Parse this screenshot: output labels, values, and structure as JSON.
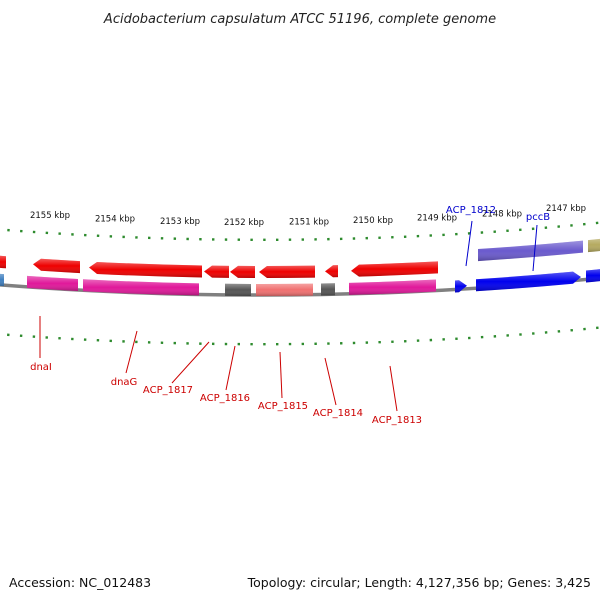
{
  "title": "Acidobacterium capsulatum ATCC 51196, complete genome",
  "footer": {
    "accession": "Accession: NC_012483",
    "summary": "Topology: circular; Length: 4,127,356 bp; Genes: 3,425"
  },
  "colors": {
    "backbone": "#808080",
    "tick": "#2e8b2e",
    "label_red": "#cc0000",
    "label_blue": "#0000cc"
  },
  "ticks": [
    {
      "label": "2155 kbp"
    },
    {
      "label": "2154 kbp"
    },
    {
      "label": "2153 kbp"
    },
    {
      "label": "2152 kbp"
    },
    {
      "label": "2151 kbp"
    },
    {
      "label": "2150 kbp"
    },
    {
      "label": "2149 kbp"
    },
    {
      "label": "2148 kbp"
    },
    {
      "label": "2147 kbp"
    }
  ],
  "gene_labels": [
    {
      "name": "dnaI",
      "strand": "minus"
    },
    {
      "name": "dnaG",
      "strand": "minus"
    },
    {
      "name": "ACP_1817",
      "strand": "minus"
    },
    {
      "name": "ACP_1816",
      "strand": "minus"
    },
    {
      "name": "ACP_1815",
      "strand": "minus"
    },
    {
      "name": "ACP_1814",
      "strand": "minus"
    },
    {
      "name": "ACP_1813",
      "strand": "minus"
    },
    {
      "name": "ACP_1812",
      "strand": "plus"
    },
    {
      "name": "pccB",
      "strand": "plus"
    }
  ],
  "features": [
    {
      "color": "#ee0000",
      "strand": "minus"
    },
    {
      "color": "#ee0000",
      "strand": "minus"
    },
    {
      "color": "#ee0000",
      "strand": "minus"
    },
    {
      "color": "#ee0000",
      "strand": "minus"
    },
    {
      "color": "#ee0000",
      "strand": "minus"
    },
    {
      "color": "#ee0000",
      "strand": "minus"
    },
    {
      "color": "#ee0000",
      "strand": "minus"
    },
    {
      "color": "#ee0000",
      "strand": "minus"
    },
    {
      "color": "#e0189a",
      "strand": "minus"
    },
    {
      "color": "#e0189a",
      "strand": "minus"
    },
    {
      "color": "#555555",
      "strand": "minus"
    },
    {
      "color": "#f07070",
      "strand": "minus"
    },
    {
      "color": "#555555",
      "strand": "minus"
    },
    {
      "color": "#e0189a",
      "strand": "minus"
    },
    {
      "color": "#4080c0",
      "strand": "minus"
    },
    {
      "color": "#0000ee",
      "strand": "plus"
    },
    {
      "color": "#6a5acd",
      "strand": "plus"
    },
    {
      "color": "#0000ee",
      "strand": "plus"
    },
    {
      "color": "#0000ee",
      "strand": "plus"
    },
    {
      "color": "#b5aa60",
      "strand": "plus"
    }
  ]
}
